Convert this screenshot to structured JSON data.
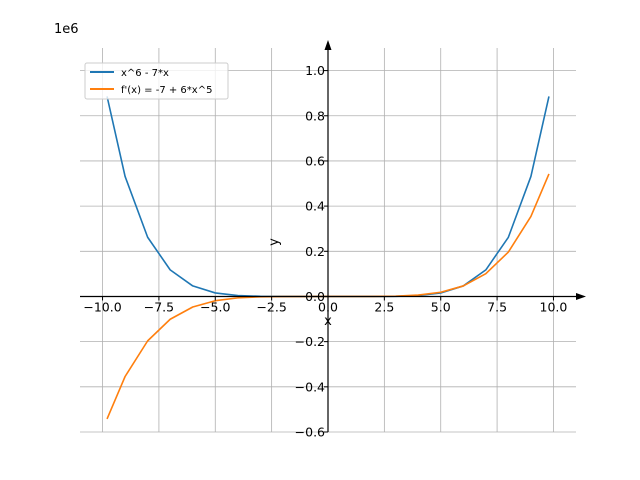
{
  "chart_data": {
    "type": "line",
    "offset_text": "1e6",
    "xlabel": "x",
    "ylabel": "y",
    "xlim": [
      -11,
      11
    ],
    "ylim": [
      -0.6,
      1.1
    ],
    "y_scale": 1000000,
    "x_ticks": [
      -10.0,
      -7.5,
      -5.0,
      -2.5,
      0.0,
      2.5,
      5.0,
      7.5,
      10.0
    ],
    "x_tick_labels": [
      "−10.0",
      "−7.5",
      "−5.0",
      "−2.5",
      "0.0",
      "2.5",
      "5.0",
      "7.5",
      "10.0"
    ],
    "y_ticks": [
      -0.6,
      -0.4,
      -0.2,
      0.0,
      0.2,
      0.4,
      0.6,
      0.8,
      1.0
    ],
    "y_tick_labels": [
      "−0.6",
      "−0.4",
      "−0.2",
      "0.0",
      "0.2",
      "0.4",
      "0.6",
      "0.8",
      "1.0"
    ],
    "grid": true,
    "legend_position": "top-left",
    "series": [
      {
        "name": "x^6 - 7*x",
        "color": "#1f77b4",
        "x": [
          -9.8,
          -9.0,
          -8.0,
          -7.0,
          -6.0,
          -5.0,
          -4.0,
          -3.0,
          -2.0,
          0.0,
          2.0,
          3.0,
          4.0,
          5.0,
          6.0,
          7.0,
          8.0,
          9.0,
          9.8
        ],
        "values": [
          885842,
          531504,
          262200,
          117698,
          46698,
          15660,
          4124,
          750,
          78,
          0,
          50,
          708,
          4068,
          15590,
          46614,
          117600,
          262088,
          531378,
          885704
        ]
      },
      {
        "name": "f'(x) = -7 + 6*x^5",
        "color": "#ff7f0e",
        "x": [
          -9.8,
          -9.0,
          -8.0,
          -7.0,
          -6.0,
          -5.0,
          -4.0,
          -3.0,
          -2.0,
          0.0,
          2.0,
          3.0,
          4.0,
          5.0,
          6.0,
          7.0,
          8.0,
          9.0,
          9.8
        ],
        "values": [
          -542339,
          -354301,
          -196615,
          -100849,
          -46663,
          -18757,
          -6151,
          -1465,
          -199,
          -7,
          185,
          1451,
          6137,
          18743,
          46649,
          100835,
          196601,
          354287,
          542325
        ]
      }
    ]
  }
}
